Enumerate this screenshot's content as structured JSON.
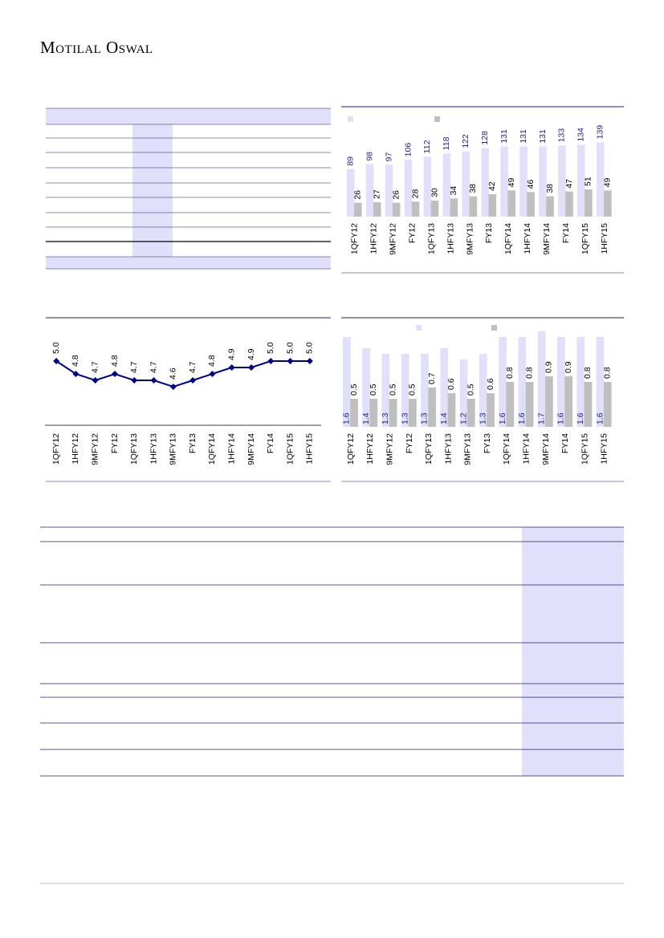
{
  "header": {
    "brand": "Motilal Oswal"
  },
  "chart_data": [
    {
      "type": "bar",
      "categories": [
        "1QFY12",
        "1HFY12",
        "9MFY12",
        "FY12",
        "1QFY13",
        "1HFY13",
        "9MFY13",
        "FY13",
        "1QFY14",
        "1HFY14",
        "9MFY14",
        "FY14",
        "1QFY15",
        "1HFY15"
      ],
      "series": [
        {
          "color": "#e0e0fa",
          "label_color": "#1f1f8f",
          "values": [
            89,
            98,
            97,
            106,
            112,
            118,
            122,
            128,
            131,
            131,
            131,
            133,
            134,
            139
          ]
        },
        {
          "color": "#bfbfbf",
          "label_color": "#000000",
          "values": [
            26,
            27,
            26,
            28,
            30,
            34,
            38,
            42,
            49,
            46,
            38,
            47,
            51,
            49
          ]
        }
      ],
      "ylim": [
        0,
        150
      ]
    },
    {
      "type": "line",
      "categories": [
        "1QFY12",
        "1HFY12",
        "9MFY12",
        "FY12",
        "1QFY13",
        "1HFY13",
        "9MFY13",
        "FY13",
        "1QFY14",
        "1HFY14",
        "9MFY14",
        "FY14",
        "1QFY15",
        "1HFY15"
      ],
      "series": [
        {
          "color": "#00008b",
          "values": [
            5.0,
            4.8,
            4.7,
            4.8,
            4.7,
            4.7,
            4.6,
            4.7,
            4.8,
            4.9,
            4.9,
            5.0,
            5.0,
            5.0
          ],
          "value_labels": [
            "5.0",
            "4.8",
            "4.7",
            "4.8",
            "4.7",
            "4.7",
            "4.6",
            "4.7",
            "4.8",
            "4.9",
            "4.9",
            "5.0",
            "5.0",
            "5.0"
          ]
        }
      ],
      "ylim": [
        4,
        5.6
      ]
    },
    {
      "type": "bar",
      "categories": [
        "1QFY12",
        "1HFY12",
        "9MFY12",
        "FY12",
        "1QFY13",
        "1HFY13",
        "9MFY13",
        "FY13",
        "1QFY14",
        "1HFY14",
        "9MFY14",
        "FY14",
        "1QFY15",
        "1HFY15"
      ],
      "series": [
        {
          "color": "#e0e0fa",
          "label_color": "#1f1f8f",
          "values": [
            1.6,
            1.4,
            1.3,
            1.3,
            1.3,
            1.4,
            1.2,
            1.3,
            1.6,
            1.6,
            1.7,
            1.6,
            1.6,
            1.6
          ]
        },
        {
          "color": "#bfbfbf",
          "label_color": "#000000",
          "values": [
            0.5,
            0.5,
            0.5,
            0.5,
            0.7,
            0.6,
            0.5,
            0.6,
            0.8,
            0.8,
            0.9,
            0.9,
            0.8,
            0.8
          ]
        }
      ],
      "ylim": [
        0,
        1.9
      ]
    }
  ]
}
